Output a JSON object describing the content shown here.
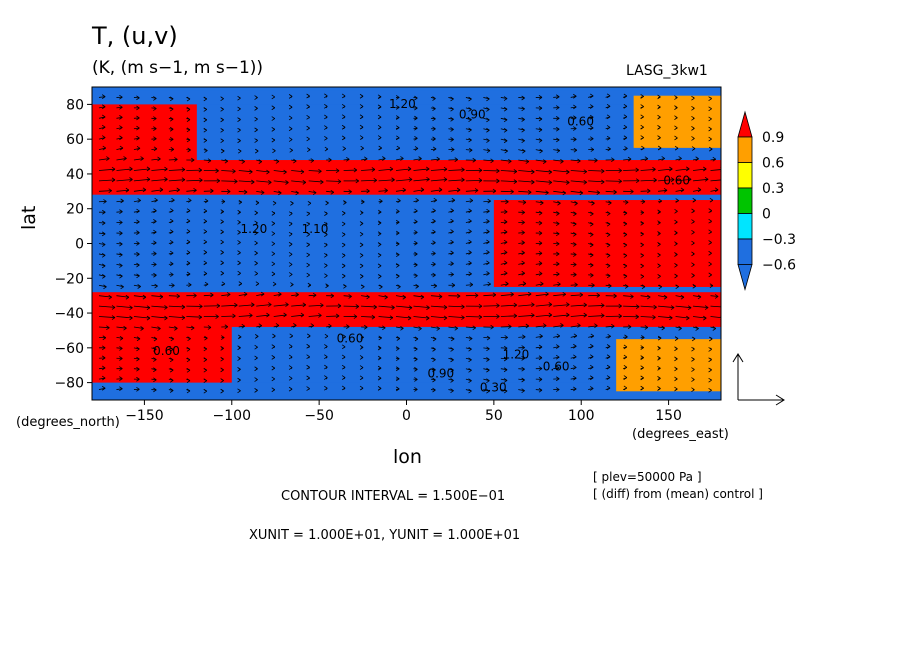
{
  "title": "T, (u,v)",
  "subtitle": "(K, (m s−1, m s−1))",
  "model_label": "LASG_3kw1",
  "axes": {
    "ylabel": "lat",
    "xlabel": "lon",
    "y_units_label": "(degrees_north)",
    "x_units_label": "(degrees_east)",
    "x_ticks": [
      "−150",
      "−100",
      "−50",
      "0",
      "50",
      "100",
      "150"
    ],
    "y_ticks": [
      "80",
      "60",
      "40",
      "20",
      "0",
      "−20",
      "−40",
      "−60",
      "−80"
    ]
  },
  "notes": {
    "plev": "[ plev=50000 Pa ]",
    "diff": "[ (diff) from (mean) control ]",
    "contour_interval": "CONTOUR INTERVAL = 1.500E−01",
    "vector_units": "XUNIT = 1.000E+01, YUNIT = 1.000E+01"
  },
  "colorbar": {
    "labels": [
      "0.9",
      "0.6",
      "0.3",
      "0",
      "−0.3",
      "−0.6"
    ],
    "colors": [
      "#1f6fe0",
      "#00e5ff",
      "#00c400",
      "#ffff00",
      "#ff9f00",
      "#ff0000"
    ]
  },
  "contour_labels": [
    {
      "text": "1.20",
      "x": -10,
      "y": 78
    },
    {
      "text": "0.90",
      "x": 30,
      "y": 72
    },
    {
      "text": "0.60",
      "x": 92,
      "y": 68
    },
    {
      "text": "0.60",
      "x": 147,
      "y": 34
    },
    {
      "text": "1.20",
      "x": -95,
      "y": 6
    },
    {
      "text": "1.10",
      "x": -60,
      "y": 6
    },
    {
      "text": "0.60",
      "x": -40,
      "y": -57
    },
    {
      "text": "0.60",
      "x": -145,
      "y": -64
    },
    {
      "text": "0.90",
      "x": 12,
      "y": -77
    },
    {
      "text": "1.20",
      "x": 55,
      "y": -66
    },
    {
      "text": "0.60",
      "x": 78,
      "y": -73
    },
    {
      "text": "0.30",
      "x": 42,
      "y": -85
    }
  ],
  "chart_data": {
    "type": "heatmap",
    "title": "T, (u,v)",
    "subtitle": "(K, (m s−1, m s−1))",
    "xlabel": "lon",
    "ylabel": "lat",
    "xlim": [
      -180,
      180
    ],
    "ylim": [
      -90,
      90
    ],
    "levels": [
      -0.6,
      -0.3,
      0,
      0.3,
      0.6,
      0.9
    ],
    "contour_interval": 0.15,
    "lat_bands": [
      {
        "lat": [
          80,
          88
        ],
        "value": -0.5
      },
      {
        "lat": [
          48,
          80
        ],
        "value": -0.75
      },
      {
        "lat": [
          28,
          48
        ],
        "value": 1.1
      },
      {
        "lat": [
          -28,
          28
        ],
        "value": -0.75
      },
      {
        "lat": [
          -48,
          -28
        ],
        "value": 1.1
      },
      {
        "lat": [
          -80,
          -48
        ],
        "value": -0.75
      },
      {
        "lat": [
          -88,
          -80
        ],
        "value": -0.5
      }
    ],
    "regions": [
      {
        "lon": [
          -180,
          -120
        ],
        "lat": [
          45,
          80
        ],
        "value": 1.0
      },
      {
        "lon": [
          -180,
          -100
        ],
        "lat": [
          -80,
          -45
        ],
        "value": 1.0
      },
      {
        "lon": [
          50,
          180
        ],
        "lat": [
          -25,
          25
        ],
        "value": 1.0
      },
      {
        "lon": [
          130,
          180
        ],
        "lat": [
          55,
          85
        ],
        "value": 0.6
      },
      {
        "lon": [
          120,
          180
        ],
        "lat": [
          -85,
          -55
        ],
        "value": 0.6
      }
    ]
  }
}
